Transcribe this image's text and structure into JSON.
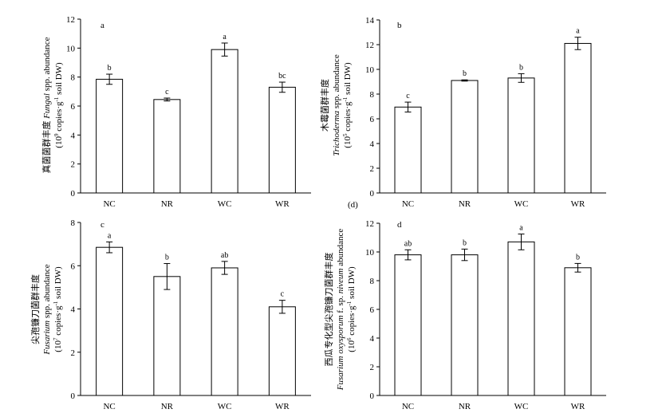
{
  "chart_data": [
    {
      "panel": "a",
      "type": "bar",
      "categories": [
        "NC",
        "NR",
        "WC",
        "WR"
      ],
      "values": [
        7.85,
        6.45,
        9.9,
        7.3
      ],
      "errors": [
        0.35,
        0.1,
        0.45,
        0.35
      ],
      "significance": [
        "b",
        "c",
        "a",
        "bc"
      ],
      "ylim": [
        0,
        12
      ],
      "yticks": [
        0,
        2,
        4,
        6,
        8,
        10,
        12
      ],
      "ylabel": [
        "真菌菌群丰度 ",
        "Fungal",
        " spp. abundance",
        "(10",
        "9",
        " copies·g",
        "-1",
        " soil DW)"
      ]
    },
    {
      "panel": "b",
      "type": "bar",
      "categories": [
        "NC",
        "NR",
        "WC",
        "WR"
      ],
      "values": [
        6.95,
        9.1,
        9.3,
        12.1
      ],
      "errors": [
        0.4,
        0.05,
        0.35,
        0.5
      ],
      "significance": [
        "c",
        "b",
        "b",
        "a"
      ],
      "ylim": [
        0,
        14
      ],
      "yticks": [
        0,
        2,
        4,
        6,
        8,
        10,
        12,
        14
      ],
      "ylabel": [
        "木霉菌群丰度",
        "Trichoderma",
        " spp. abundance",
        "(10",
        "5",
        " copies·g",
        "-1",
        " soil DW)"
      ]
    },
    {
      "panel": "c",
      "type": "bar",
      "categories": [
        "NC",
        "NR",
        "WC",
        "WR"
      ],
      "values": [
        6.85,
        5.5,
        5.9,
        4.1
      ],
      "errors": [
        0.25,
        0.6,
        0.3,
        0.3
      ],
      "significance": [
        "a",
        "b",
        "ab",
        "c"
      ],
      "ylim": [
        0,
        8
      ],
      "yticks": [
        0,
        2,
        4,
        6,
        8
      ],
      "ylabel": [
        "尖孢镰刀菌群丰度",
        "Fusarium",
        " spp. abundance",
        "(10",
        "7",
        " copies·g",
        "-1",
        " soil DW)"
      ]
    },
    {
      "panel": "d",
      "type": "bar",
      "categories": [
        "NC",
        "NR",
        "WC",
        "WR"
      ],
      "values": [
        9.8,
        9.8,
        10.7,
        8.9
      ],
      "errors": [
        0.35,
        0.4,
        0.55,
        0.3
      ],
      "significance": [
        "ab",
        "b",
        "a",
        "b"
      ],
      "ylim": [
        0,
        12
      ],
      "yticks": [
        0,
        2,
        4,
        6,
        8,
        10,
        12
      ],
      "ylabel": [
        "西瓜专化型尖孢镰刀菌群丰度",
        "Fusarium oxysporum",
        " f. sp. ",
        "niveum",
        " abundance",
        "(10",
        "6",
        " copies·g",
        "-1",
        " soil DW)"
      ]
    }
  ],
  "stray_label": "(d)"
}
